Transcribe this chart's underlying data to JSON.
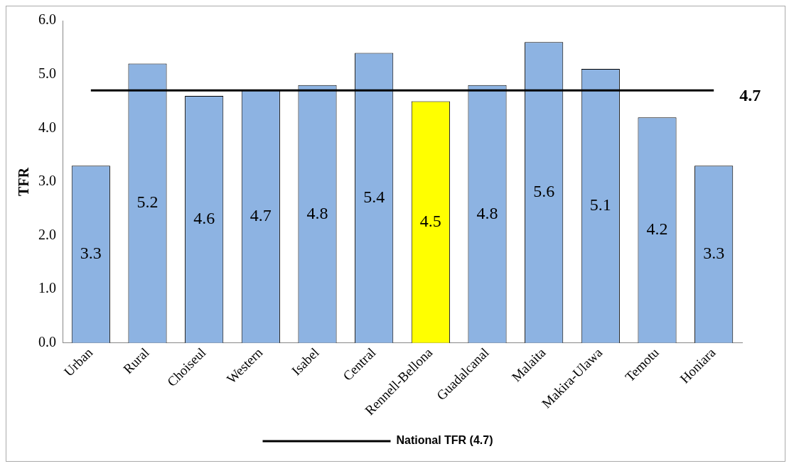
{
  "chart_data": {
    "type": "bar",
    "ylabel": "TFR",
    "categories": [
      "Urban",
      "Rural",
      "Choiseul",
      "Western",
      "Isabel",
      "Central",
      "Rennell-Bellona",
      "Guadalcanal",
      "Malaita",
      "Makira-Ulawa",
      "Temotu",
      "Honiara"
    ],
    "series": [
      {
        "values": [
          3.3,
          5.2,
          4.6,
          4.7,
          4.8,
          5.4,
          4.5,
          4.8,
          5.6,
          5.1,
          4.2,
          3.3
        ],
        "colors": [
          "#8db3e2",
          "#8db3e2",
          "#8db3e2",
          "#8db3e2",
          "#8db3e2",
          "#8db3e2",
          "#ffff00",
          "#8db3e2",
          "#8db3e2",
          "#8db3e2",
          "#8db3e2",
          "#8db3e2"
        ],
        "value_labels": [
          "3.3",
          "5.2",
          "4.6",
          "4.7",
          "4.8",
          "5.4",
          "4.5",
          "4.8",
          "5.6",
          "5.1",
          "4.2",
          "3.3"
        ]
      },
      {
        "type": "line",
        "name": "National TFR (4.7)",
        "color": "#000000",
        "values": [
          4.7,
          4.7,
          4.7,
          4.7,
          4.7,
          4.7,
          4.7,
          4.7,
          4.7,
          4.7,
          4.7,
          4.7
        ],
        "value_labels": [
          null,
          null,
          null,
          null,
          null,
          null,
          null,
          null,
          null,
          null,
          null,
          "4.7"
        ]
      }
    ],
    "grid": false,
    "legend": "bottom",
    "marker": "none",
    "line_style": "solid",
    "ylim": [
      0,
      6
    ],
    "yticks": [
      {
        "value": 0,
        "label": "0.0"
      },
      {
        "value": 1,
        "label": "1.0"
      },
      {
        "value": 2,
        "label": "2.0"
      },
      {
        "value": 3,
        "label": "3.0"
      },
      {
        "value": 4,
        "label": "4.0"
      },
      {
        "value": 5,
        "label": "5.0"
      },
      {
        "value": 6,
        "label": "6.0"
      }
    ]
  }
}
